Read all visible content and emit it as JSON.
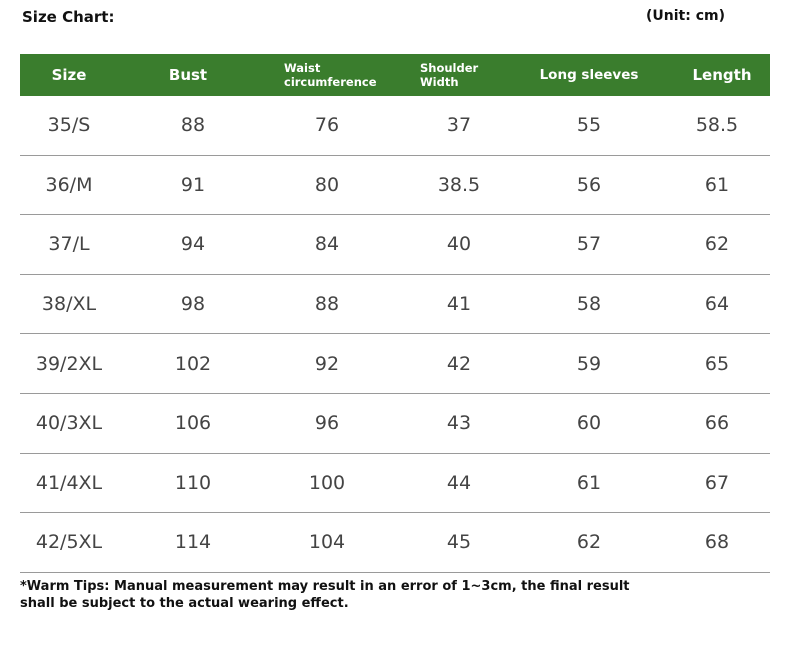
{
  "title": "Size Chart:",
  "unit": "(Unit: cm)",
  "table": {
    "headers": [
      "Size",
      "Bust",
      "Waist\ncircumference",
      "Shoulder\nWidth",
      "Long sleeves",
      "Length"
    ],
    "rows": [
      [
        "35/S",
        "88",
        "76",
        "37",
        "55",
        "58.5"
      ],
      [
        "36/M",
        "91",
        "80",
        "38.5",
        "56",
        "61"
      ],
      [
        "37/L",
        "94",
        "84",
        "40",
        "57",
        "62"
      ],
      [
        "38/XL",
        "98",
        "88",
        "41",
        "58",
        "64"
      ],
      [
        "39/2XL",
        "102",
        "92",
        "42",
        "59",
        "65"
      ],
      [
        "40/3XL",
        "106",
        "96",
        "43",
        "60",
        "66"
      ],
      [
        "41/4XL",
        "110",
        "100",
        "44",
        "61",
        "67"
      ],
      [
        "42/5XL",
        "114",
        "104",
        "45",
        "62",
        "68"
      ]
    ]
  },
  "tips_line1": "*Warm Tips: Manual measurement may result in an error of 1~3cm, the final result",
  "tips_line2": "shall be subject to the actual wearing effect.",
  "colors": {
    "header_bg": "#3a7d2d",
    "header_text": "#ffffff",
    "row_divider": "#9a9a9a"
  }
}
